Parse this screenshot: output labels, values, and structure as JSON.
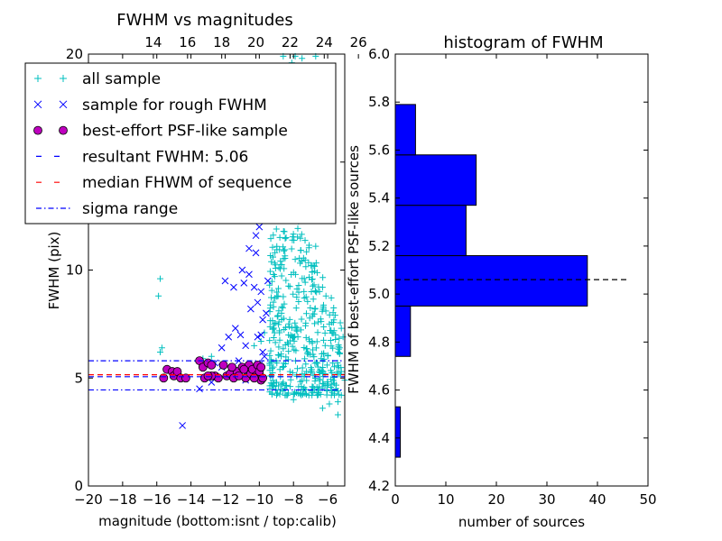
{
  "chart_data": [
    {
      "type": "scatter",
      "title": "FWHM vs magnitudes",
      "xlabel": "magnitude (bottom:isnt / top:calib)",
      "ylabel": "FWHM (pix)",
      "xlim": [
        -20,
        -5
      ],
      "ylim": [
        0,
        20
      ],
      "x_ticks": [
        -20,
        -18,
        -16,
        -14,
        -12,
        -10,
        -8,
        -6
      ],
      "x_tick_labels": [
        "−20",
        "−18",
        "−16",
        "−14",
        "−12",
        "−10",
        "−8",
        "−6"
      ],
      "y_ticks": [
        0,
        5,
        10,
        15,
        20
      ],
      "y_tick_labels": [
        "0",
        "5",
        "10",
        "15",
        "20"
      ],
      "top_axis_ticks": [
        14,
        16,
        18,
        20,
        22,
        24,
        26
      ],
      "top_axis_offset": 30.2,
      "grid": false,
      "legend_position": "top-left",
      "legend": [
        {
          "label": "all sample",
          "marker": "plus",
          "color": "#00bfbf"
        },
        {
          "label": "sample for rough FWHM",
          "marker": "x",
          "color": "#0000ff"
        },
        {
          "label": "best-effort PSF-like sample",
          "marker": "circle",
          "color": "#bf00bf"
        },
        {
          "label": "resultant FWHM: 5.06",
          "marker": "dashed",
          "color": "#0000ff"
        },
        {
          "label": "median FHWM of sequence",
          "marker": "dashed",
          "color": "#ff0000"
        },
        {
          "label": "sigma range",
          "marker": "dashdot",
          "color": "#0000ff"
        }
      ],
      "reference_lines": {
        "resultant_fwhm": 5.06,
        "median_fwhm": 5.15,
        "sigma_range": [
          4.45,
          5.8
        ]
      },
      "series": [
        {
          "name": "all sample",
          "marker": "plus",
          "color": "#00bfbf",
          "points": [
            [
              -15.8,
              9.6
            ],
            [
              -15.9,
              8.8
            ],
            [
              -15.7,
              6.4
            ],
            [
              -15.8,
              6.2
            ],
            [
              -13.3,
              5.9
            ],
            [
              -12.8,
              6.0
            ],
            [
              -9.9,
              6.7
            ],
            [
              -10.3,
              6.5
            ],
            [
              -9.7,
              7.1
            ],
            [
              -9.4,
              9.3
            ],
            [
              -9.2,
              10.6
            ],
            [
              -9.0,
              11.9
            ],
            [
              -8.8,
              12.5
            ],
            [
              -8.9,
              13.6
            ],
            [
              -8.5,
              14.6
            ],
            [
              -8.6,
              15.2
            ],
            [
              -8.4,
              16.0
            ],
            [
              -8.2,
              17.0
            ],
            [
              -8.1,
              17.8
            ],
            [
              -8.0,
              18.6
            ],
            [
              -8.3,
              19.2
            ],
            [
              -8.1,
              19.6
            ],
            [
              -7.9,
              19.9
            ],
            [
              -8.6,
              19.9
            ],
            [
              -7.5,
              19.8
            ],
            [
              -6.7,
              19.9
            ],
            [
              -7.8,
              18.2
            ],
            [
              -7.4,
              17.1
            ],
            [
              -7.0,
              14.5
            ],
            [
              -6.7,
              11.1
            ],
            [
              -6.8,
              10.2
            ],
            [
              -6.3,
              9.2
            ],
            [
              -6.1,
              8.8
            ],
            [
              -5.9,
              7.5
            ],
            [
              -5.2,
              7.3
            ],
            [
              -5.1,
              6.9
            ],
            [
              -5.3,
              6.4
            ],
            [
              -5.2,
              5.3
            ],
            [
              -5.0,
              4.9
            ],
            [
              -5.2,
              4.2
            ],
            [
              -5.4,
              3.9
            ],
            [
              -5.4,
              3.3
            ],
            [
              -5.9,
              3.8
            ],
            [
              -6.3,
              3.6
            ],
            [
              -6.5,
              4.6
            ],
            [
              -6.9,
              4.6
            ],
            [
              -7.1,
              4.2
            ],
            [
              -7.4,
              4.5
            ],
            [
              -7.7,
              4.6
            ],
            [
              -8.0,
              4.0
            ],
            [
              -8.3,
              4.3
            ],
            [
              -8.6,
              4.8
            ],
            [
              -9.0,
              4.8
            ],
            [
              -9.1,
              9.7
            ]
          ],
          "cloud": {
            "x_range": [
              -9.4,
              -5.2
            ],
            "y_range": [
              4.2,
              13.5
            ],
            "count": 420
          }
        },
        {
          "name": "sample for rough FWHM",
          "marker": "x",
          "color": "#0000ff",
          "points": [
            [
              -14.5,
              2.8
            ],
            [
              -13.5,
              4.5
            ],
            [
              -12.8,
              4.8
            ],
            [
              -12.2,
              6.4
            ],
            [
              -11.8,
              6.9
            ],
            [
              -11.4,
              7.3
            ],
            [
              -11.1,
              7.0
            ],
            [
              -10.8,
              6.5
            ],
            [
              -10.5,
              8.2
            ],
            [
              -10.3,
              9.2
            ],
            [
              -10.1,
              8.5
            ],
            [
              -10.6,
              9.8
            ],
            [
              -11.0,
              10.0
            ],
            [
              -11.5,
              9.2
            ],
            [
              -12.0,
              9.5
            ],
            [
              -10.9,
              9.4
            ],
            [
              -10.2,
              10.8
            ],
            [
              -10.0,
              12.0
            ],
            [
              -10.6,
              11.0
            ],
            [
              -10.5,
              12.6
            ],
            [
              -10.3,
              12.4
            ],
            [
              -10.2,
              11.6
            ],
            [
              -9.9,
              9.0
            ],
            [
              -9.8,
              7.7
            ],
            [
              -9.9,
              7.0
            ],
            [
              -9.8,
              6.2
            ],
            [
              -9.7,
              6.0
            ],
            [
              -10.0,
              5.6
            ],
            [
              -12.2,
              5.5
            ],
            [
              -12.6,
              5.7
            ],
            [
              -11.2,
              5.8
            ],
            [
              -10.7,
              5.3
            ],
            [
              -10.8,
              4.9
            ],
            [
              -10.1,
              6.9
            ],
            [
              -9.6,
              8.0
            ],
            [
              -9.5,
              9.5
            ]
          ]
        },
        {
          "name": "best-effort PSF-like sample",
          "marker": "circle",
          "color": "#bf00bf",
          "points": [
            [
              -15.6,
              5.0
            ],
            [
              -15.4,
              5.4
            ],
            [
              -15.1,
              5.3
            ],
            [
              -15.0,
              5.1
            ],
            [
              -14.8,
              5.3
            ],
            [
              -14.6,
              5.0
            ],
            [
              -14.3,
              5.0
            ],
            [
              -13.5,
              5.8
            ],
            [
              -13.3,
              5.5
            ],
            [
              -13.2,
              5.0
            ],
            [
              -13.0,
              5.7
            ],
            [
              -12.8,
              5.6
            ],
            [
              -12.6,
              5.1
            ],
            [
              -12.4,
              5.0
            ],
            [
              -12.1,
              5.6
            ],
            [
              -11.9,
              5.1
            ],
            [
              -11.7,
              5.2
            ],
            [
              -11.5,
              5.0
            ],
            [
              -11.3,
              5.3
            ],
            [
              -11.0,
              5.5
            ],
            [
              -10.8,
              5.0
            ],
            [
              -10.6,
              5.6
            ],
            [
              -10.5,
              5.2
            ],
            [
              -10.4,
              5.4
            ],
            [
              -10.2,
              5.1
            ],
            [
              -10.1,
              5.6
            ],
            [
              -9.9,
              4.9
            ],
            [
              -9.8,
              5.0
            ],
            [
              -12.8,
              5.1
            ],
            [
              -11.2,
              5.1
            ],
            [
              -10.9,
              5.4
            ],
            [
              -10.0,
              5.3
            ],
            [
              -9.9,
              5.5
            ],
            [
              -13.0,
              5.1
            ],
            [
              -11.6,
              5.5
            ],
            [
              -10.3,
              5.0
            ]
          ]
        }
      ]
    },
    {
      "type": "bar",
      "orientation": "horizontal",
      "title": "histogram of FWHM",
      "xlabel": "number of sources",
      "ylabel": "FWHM of best-effort PSF-like sources",
      "xlim": [
        0,
        50
      ],
      "ylim": [
        4.2,
        6.0
      ],
      "x_ticks": [
        0,
        10,
        20,
        30,
        40,
        50
      ],
      "x_tick_labels": [
        "0",
        "10",
        "20",
        "30",
        "40",
        "50"
      ],
      "y_ticks": [
        4.2,
        4.4,
        4.6,
        4.8,
        5.0,
        5.2,
        5.4,
        5.6,
        5.8,
        6.0
      ],
      "y_tick_labels": [
        "4.2",
        "4.4",
        "4.6",
        "4.8",
        "5.0",
        "5.2",
        "5.4",
        "5.6",
        "5.8",
        "6.0"
      ],
      "bar_color": "#0000ff",
      "bins": [
        {
          "low": 4.32,
          "high": 4.53,
          "count": 1
        },
        {
          "low": 4.53,
          "high": 4.74,
          "count": 0
        },
        {
          "low": 4.74,
          "high": 4.95,
          "count": 3
        },
        {
          "low": 4.95,
          "high": 5.16,
          "count": 38
        },
        {
          "low": 5.16,
          "high": 5.37,
          "count": 14
        },
        {
          "low": 5.37,
          "high": 5.58,
          "count": 16
        },
        {
          "low": 5.58,
          "high": 5.79,
          "count": 4
        }
      ],
      "reference_line": {
        "value": 5.06,
        "style": "dashed",
        "color": "#000000"
      }
    }
  ]
}
